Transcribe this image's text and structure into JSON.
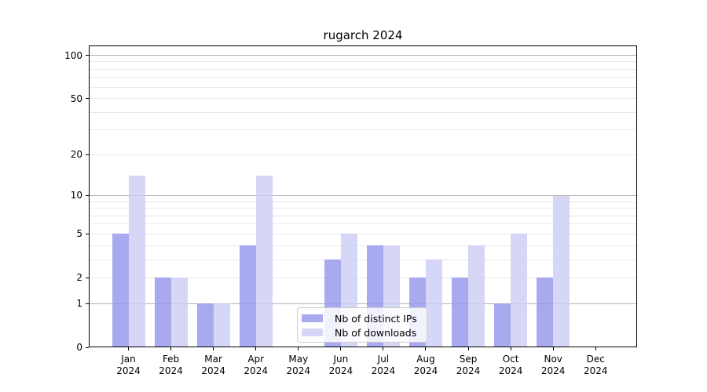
{
  "title": "rugarch 2024",
  "chart_data": {
    "type": "bar",
    "title": "rugarch 2024",
    "categories": [
      "Jan 2024",
      "Feb 2024",
      "Mar 2024",
      "Apr 2024",
      "May 2024",
      "Jun 2024",
      "Jul 2024",
      "Aug 2024",
      "Sep 2024",
      "Oct 2024",
      "Nov 2024",
      "Dec 2024"
    ],
    "series": [
      {
        "name": "Nb of distinct IPs",
        "color": "#a9a9f0",
        "values": [
          5,
          2,
          1,
          4,
          0,
          3,
          4,
          2,
          2,
          1,
          2,
          0
        ]
      },
      {
        "name": "Nb of downloads",
        "color": "#d6d6f6",
        "values": [
          14,
          2,
          1,
          14,
          0,
          5,
          4,
          3,
          4,
          5,
          10,
          0
        ]
      }
    ],
    "xlabel": "",
    "ylabel": "",
    "y_scale": "log1p",
    "ylim": [
      0,
      117
    ],
    "y_ticks": [
      0,
      1,
      2,
      5,
      10,
      20,
      50,
      100
    ],
    "gridlines": {
      "major": [
        1,
        10,
        100
      ],
      "minor": [
        2,
        3,
        4,
        5,
        6,
        7,
        8,
        9,
        20,
        30,
        40,
        50,
        60,
        70,
        80,
        90
      ]
    },
    "grid_on": true,
    "legend_position": "lower-center-inside"
  },
  "colors": {
    "bar_distinct_ips": "#a9a9f0",
    "bar_downloads": "#d6d6f6",
    "grid_major": "#b3b3b3",
    "grid_minor": "#e9e9e9",
    "axis": "#000000",
    "legend_border": "#cccccc"
  }
}
